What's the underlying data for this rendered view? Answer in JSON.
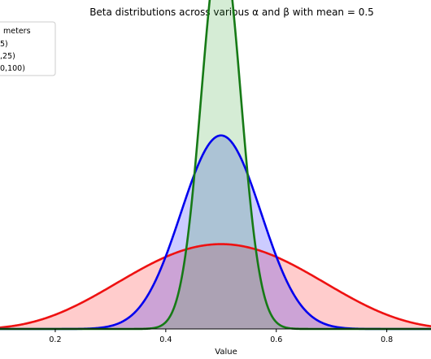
{
  "chart_data": {
    "type": "area",
    "title": "Beta distributions across various α and β with mean = 0.5",
    "xlabel": "Value",
    "ylabel": "",
    "xlim": [
      0.1,
      0.88
    ],
    "ylim": [
      0,
      8.6
    ],
    "xticks": [
      "0.2",
      "0.4",
      "0.6",
      "0.8"
    ],
    "grid": false,
    "legend": {
      "position": "top-left",
      "title": "meters",
      "entries": [
        "5)",
        ",25)",
        "0,100)"
      ]
    },
    "series": [
      {
        "name": "5)",
        "alpha": 5,
        "beta": 5,
        "color": "#ee1111",
        "fill": "#ff0000"
      },
      {
        "name": ",25)",
        "alpha": 25,
        "beta": 25,
        "color": "#0000ee",
        "fill": "#0000ff"
      },
      {
        "name": "0,100)",
        "alpha": 100,
        "beta": 100,
        "color": "#167a16",
        "fill": "#2ca02c"
      }
    ]
  }
}
